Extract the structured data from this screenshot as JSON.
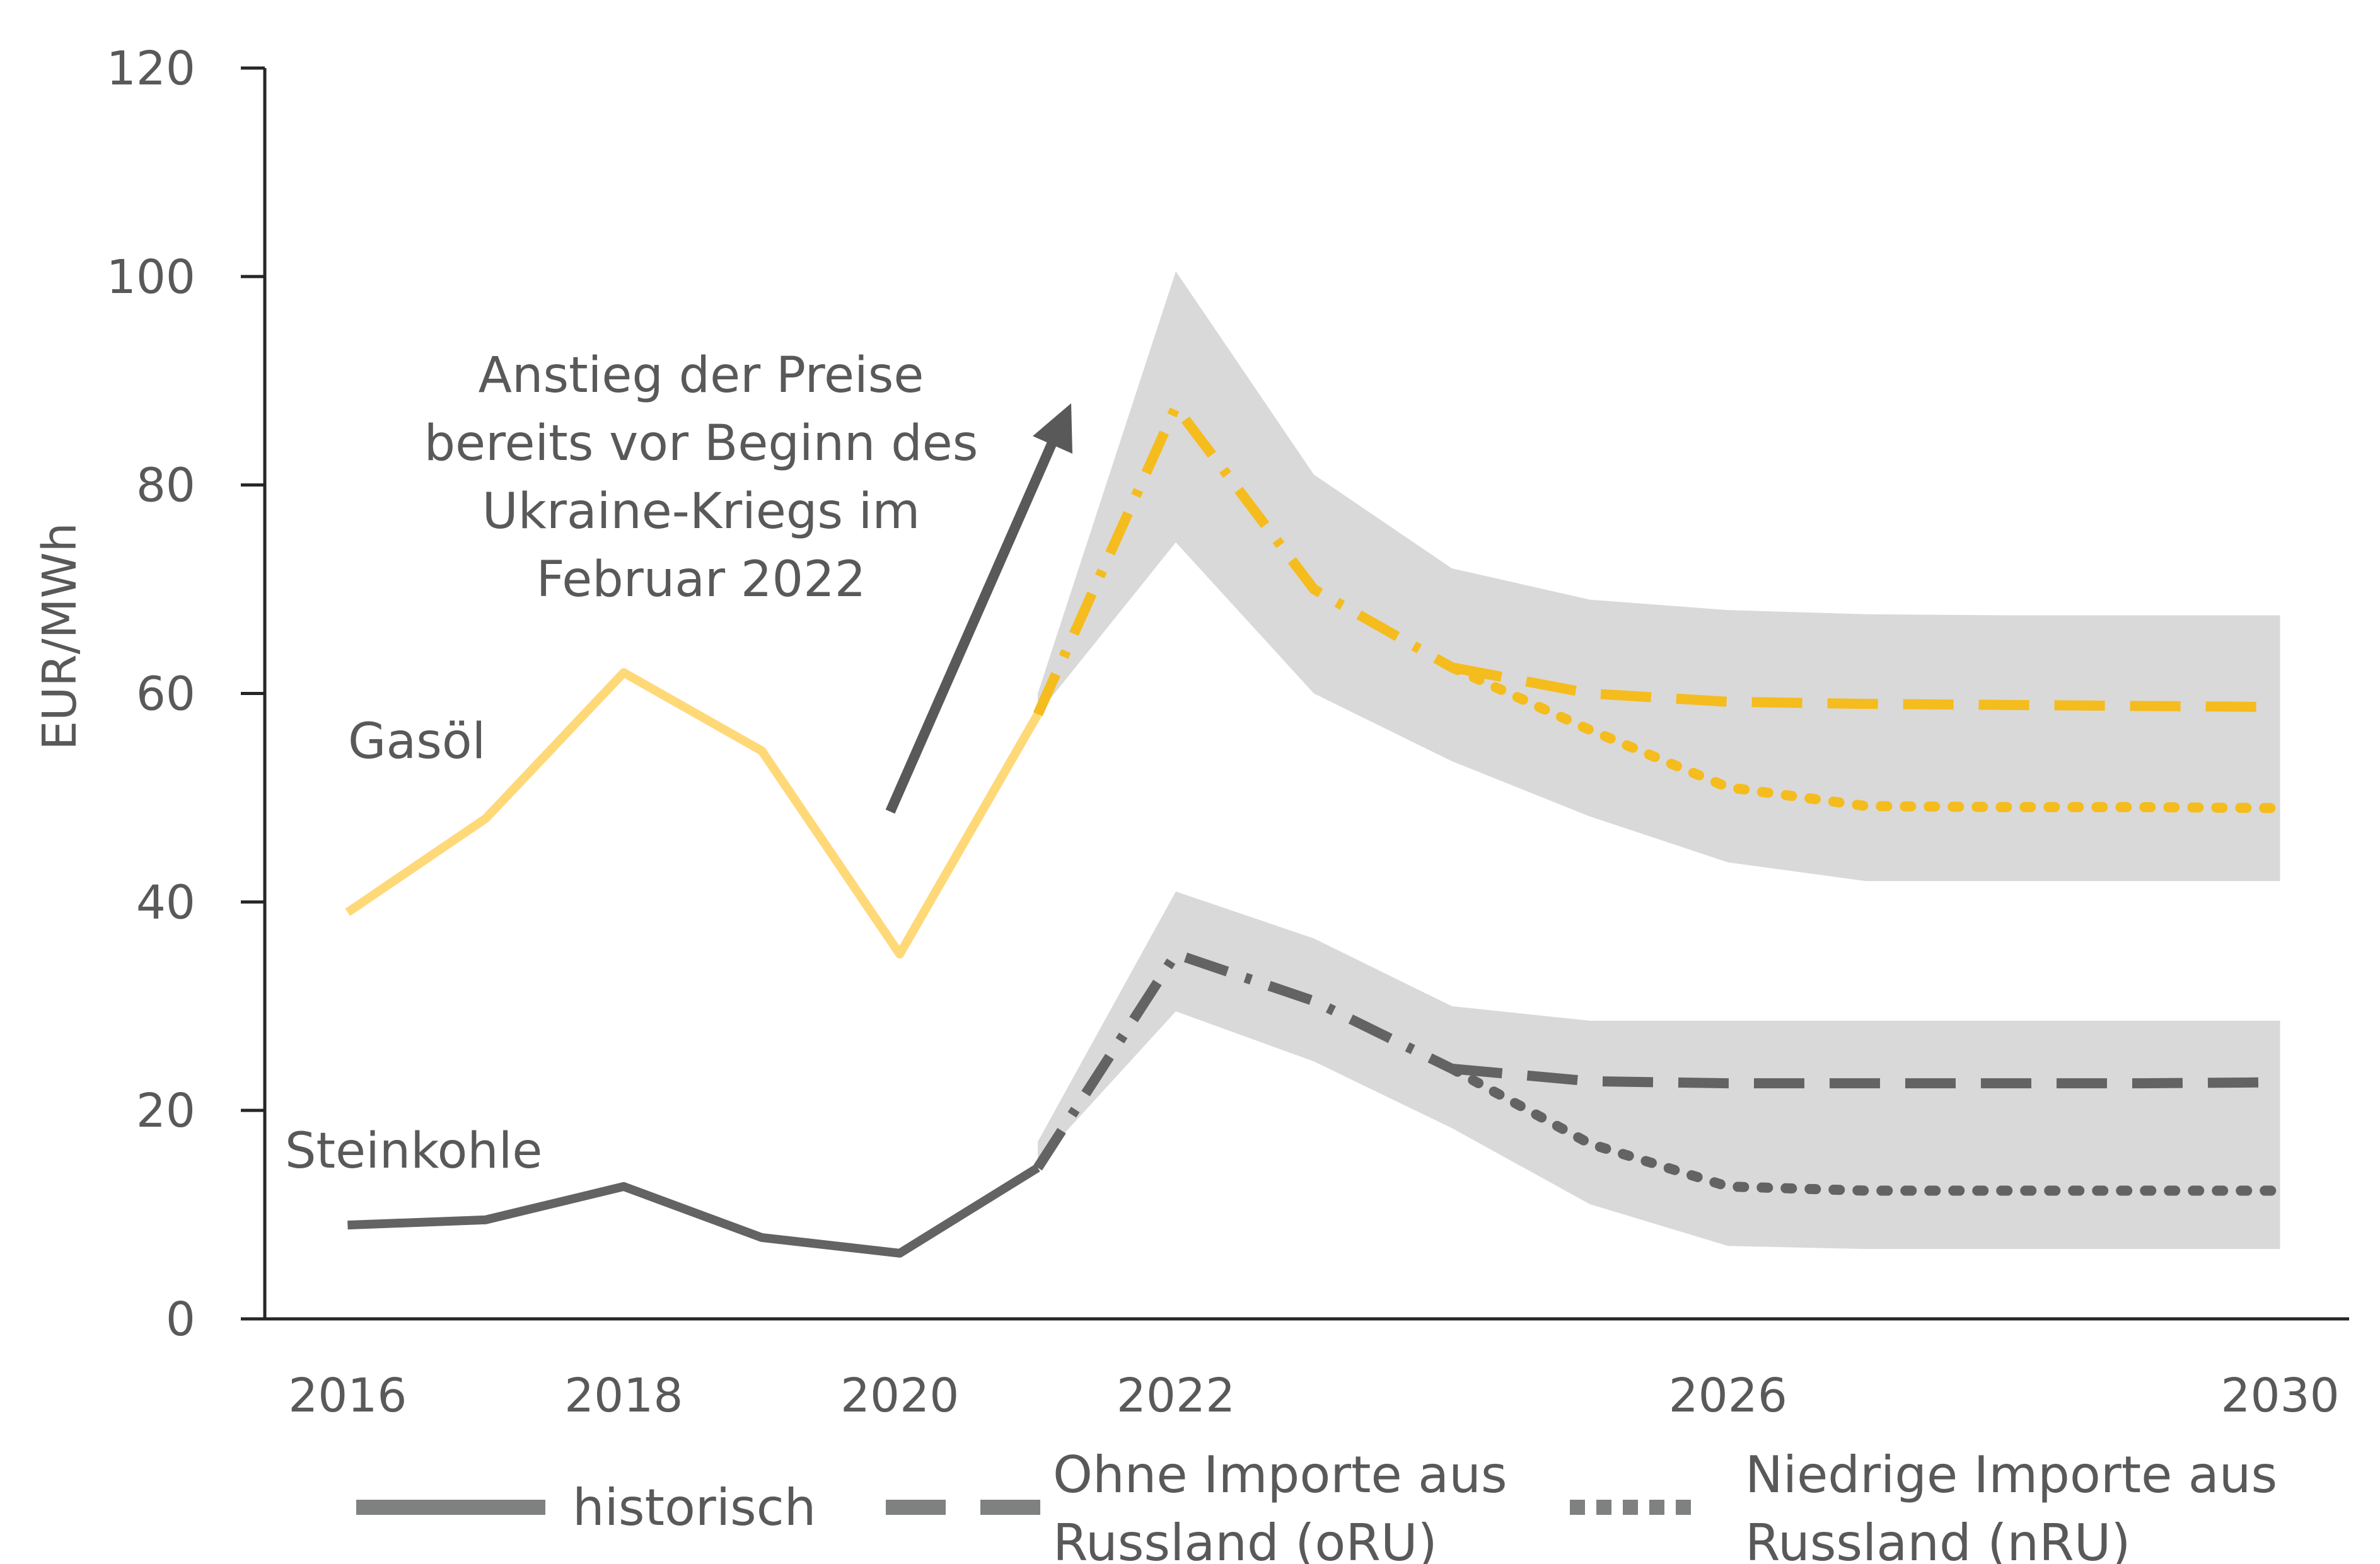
{
  "chart_data": {
    "type": "line",
    "title": "",
    "ylabel": "EUR/MWh",
    "xlabel": "",
    "ylim": [
      0,
      120
    ],
    "xlim": [
      2015.4,
      2030.5
    ],
    "y_ticks": [
      "0",
      "20",
      "40",
      "60",
      "80",
      "100",
      "120"
    ],
    "x_ticks": [
      "2016",
      "2018",
      "2020",
      "2022",
      "2026",
      "2030"
    ],
    "grid": false,
    "legend_position": "bottom",
    "colors": {
      "gas_hist": "#FFD878",
      "gas_proj": "#F5BC1E",
      "coal": "#636363",
      "band": "#D9D9D9",
      "text": "#595959",
      "axis": "#262626"
    },
    "series_labels": {
      "gas": "Gasöl",
      "coal": "Steinkohle"
    },
    "annotation": {
      "lines": [
        "Anstieg der Preise",
        "bereits vor Beginn des",
        "Ukraine-Kriegs im",
        "Februar 2022"
      ]
    },
    "legend": [
      {
        "style": "solid",
        "label_lines": [
          "historisch"
        ]
      },
      {
        "style": "dashed",
        "label_lines": [
          "Ohne Importe aus",
          "Russland (oRU)"
        ]
      },
      {
        "style": "dotted",
        "label_lines": [
          "Niedrige Importe aus",
          "Russland (nRU)"
        ]
      }
    ],
    "series": [
      {
        "group": "gas",
        "kind": "historisch",
        "x": [
          2016,
          2017,
          2018,
          2019,
          2020,
          2021
        ],
        "y": [
          39,
          48,
          62,
          54.5,
          35,
          58
        ]
      },
      {
        "group": "gas",
        "kind": "both",
        "x": [
          2021,
          2022,
          2023,
          2024
        ],
        "y": [
          58,
          87.5,
          70,
          62.5
        ]
      },
      {
        "group": "gas",
        "kind": "oRU",
        "x": [
          2024,
          2025,
          2026,
          2027,
          2028,
          2029,
          2030
        ],
        "y": [
          62.5,
          60,
          59.2,
          59,
          58.9,
          58.8,
          58.7
        ]
      },
      {
        "group": "gas",
        "kind": "nRU",
        "x": [
          2024,
          2025,
          2026,
          2027,
          2028,
          2029,
          2030
        ],
        "y": [
          62.5,
          56.5,
          51,
          49.2,
          49.1,
          49.1,
          49
        ]
      },
      {
        "group": "coal",
        "kind": "historisch",
        "x": [
          2016,
          2017,
          2018,
          2019,
          2020,
          2021
        ],
        "y": [
          9,
          9.5,
          12.7,
          7.8,
          6.3,
          14.5
        ]
      },
      {
        "group": "coal",
        "kind": "both",
        "x": [
          2021,
          2022,
          2023,
          2024
        ],
        "y": [
          14.5,
          35,
          30.5,
          24
        ]
      },
      {
        "group": "coal",
        "kind": "oRU",
        "x": [
          2024,
          2025,
          2026,
          2027,
          2028,
          2029,
          2030
        ],
        "y": [
          24,
          22.8,
          22.6,
          22.6,
          22.6,
          22.6,
          22.7
        ]
      },
      {
        "group": "coal",
        "kind": "nRU",
        "x": [
          2024,
          2025,
          2026,
          2027,
          2028,
          2029,
          2030
        ],
        "y": [
          24,
          16.8,
          12.7,
          12.3,
          12.3,
          12.3,
          12.3
        ]
      }
    ],
    "bands": [
      {
        "group": "gas",
        "x": [
          2021,
          2022,
          2023,
          2024,
          2025,
          2026,
          2027,
          2028,
          2029,
          2030
        ],
        "upper": [
          60,
          100.5,
          81,
          72,
          69,
          68,
          67.6,
          67.5,
          67.5,
          67.5
        ],
        "lower": [
          58,
          74.5,
          60,
          53.5,
          48.2,
          43.8,
          42,
          42,
          42,
          42
        ]
      },
      {
        "group": "coal",
        "x": [
          2021,
          2022,
          2023,
          2024,
          2025,
          2026,
          2027,
          2028,
          2029,
          2030
        ],
        "upper": [
          17,
          41,
          36.5,
          30,
          28.6,
          28.6,
          28.6,
          28.6,
          28.6,
          28.6
        ],
        "lower": [
          15,
          29.5,
          24.7,
          18.3,
          11,
          7,
          6.7,
          6.7,
          6.7,
          6.7
        ]
      }
    ]
  }
}
